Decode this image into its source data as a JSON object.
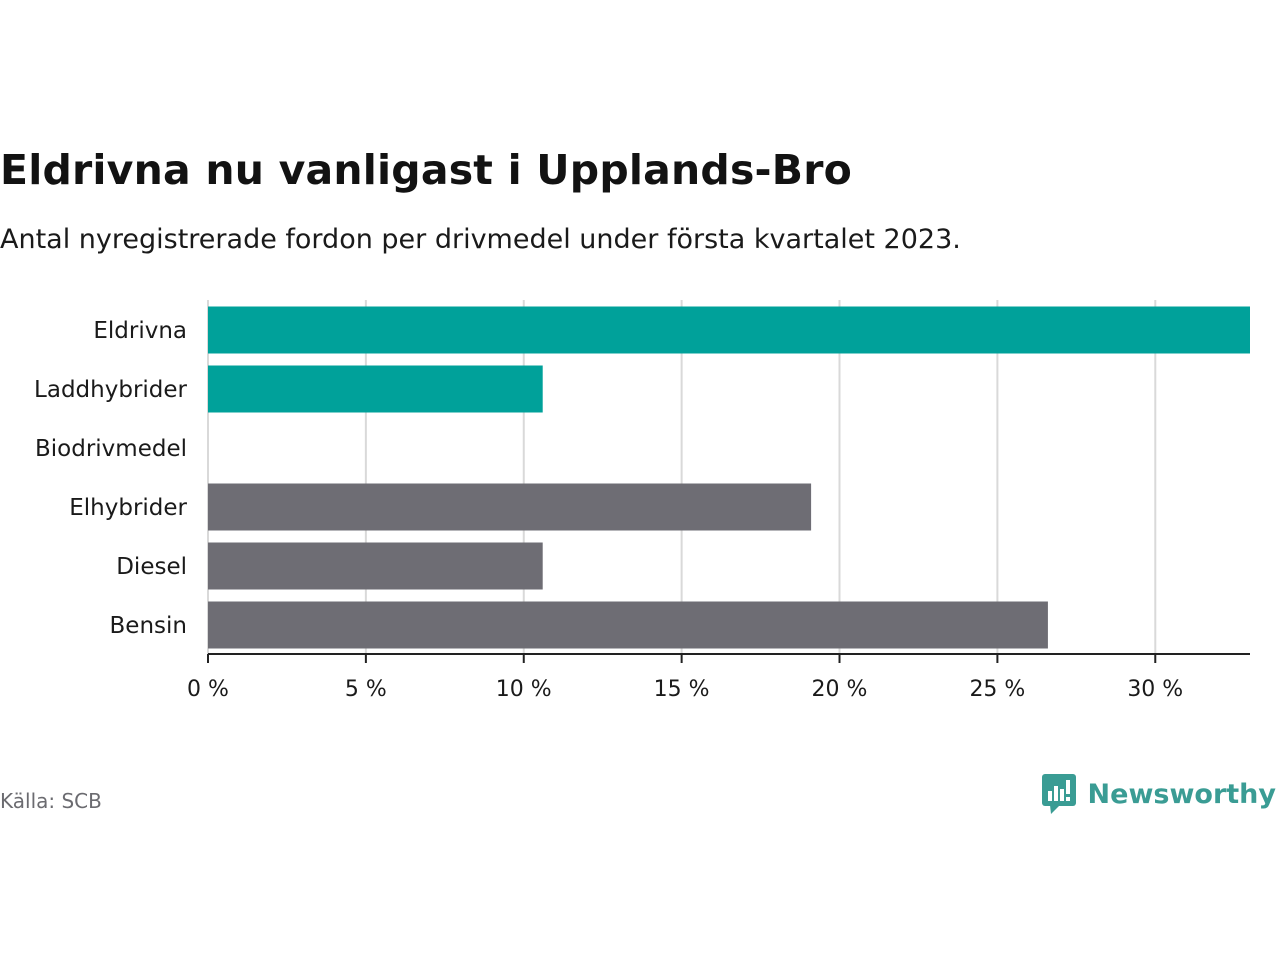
{
  "header": {
    "title": "Eldrivna nu vanligast i Upplands-Bro",
    "subtitle": "Antal nyregistrerade fordon per drivmedel under första kvartalet 2023."
  },
  "footer": {
    "source": "Källa: SCB",
    "brand": "Newsworthy",
    "brand_icon": "newsworthy-logo-icon"
  },
  "colors": {
    "highlight": "#00a19a",
    "default": "#6e6d74",
    "grid": "#d9d9d9",
    "axis": "#222222",
    "brand": "#3a9c94"
  },
  "chart_data": {
    "type": "bar",
    "orientation": "horizontal",
    "title": "Eldrivna nu vanligast i Upplands-Bro",
    "subtitle": "Antal nyregistrerade fordon per drivmedel under första kvartalet 2023.",
    "xlabel": "",
    "ylabel": "",
    "categories": [
      "Eldrivna",
      "Laddhybrider",
      "Biodrivmedel",
      "Elhybrider",
      "Diesel",
      "Bensin"
    ],
    "values": [
      33.0,
      10.6,
      0,
      19.1,
      10.6,
      26.6
    ],
    "highlighted": [
      true,
      true,
      true,
      false,
      false,
      false
    ],
    "unit": "%",
    "xlim": [
      0,
      33
    ],
    "ticks": [
      0,
      5,
      10,
      15,
      20,
      25,
      30
    ],
    "tick_labels": [
      "0 %",
      "5 %",
      "10 %",
      "15 %",
      "20 %",
      "25 %",
      "30 %"
    ],
    "grid": true,
    "legend": "none"
  }
}
